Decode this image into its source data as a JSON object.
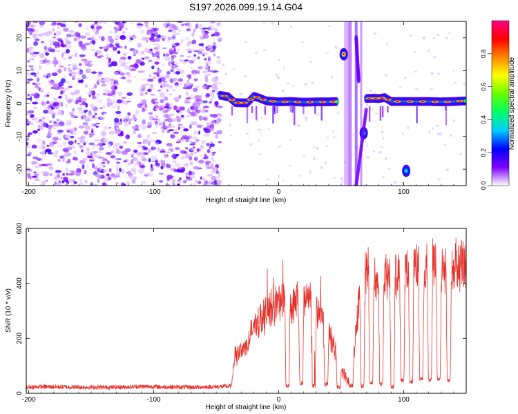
{
  "title": "S197.2026.099.19.14.G04",
  "chart_data": [
    {
      "type": "heatmap",
      "xlabel": "Height of straight line (km)",
      "ylabel": "Frequency (Hz)",
      "xlim": [
        -202,
        150
      ],
      "ylim": [
        -25,
        25
      ],
      "xticks": [
        -200,
        -100,
        0,
        100
      ],
      "yticks": [
        -20,
        -10,
        0,
        10,
        20
      ],
      "noise_region_x": [
        -202,
        -47
      ],
      "ridge": [
        [
          -47,
          2.5
        ],
        [
          -40,
          2
        ],
        [
          -35,
          0.3
        ],
        [
          -30,
          0.2
        ],
        [
          -25,
          0.2
        ],
        [
          -20,
          2.2
        ],
        [
          -15,
          1.6
        ],
        [
          -10,
          0.8
        ],
        [
          0,
          0.5
        ],
        [
          10,
          0.6
        ],
        [
          20,
          0.4
        ],
        [
          30,
          0.5
        ],
        [
          40,
          0.5
        ],
        [
          47,
          0.6
        ]
      ],
      "ridge2": [
        [
          70,
          1.5
        ],
        [
          75,
          1.6
        ],
        [
          80,
          1.5
        ],
        [
          85,
          1.8
        ],
        [
          90,
          0.6
        ],
        [
          100,
          0.6
        ],
        [
          110,
          0.6
        ],
        [
          120,
          0.6
        ],
        [
          130,
          0.5
        ],
        [
          140,
          0.6
        ],
        [
          150,
          0.8
        ]
      ],
      "blobs": [
        {
          "x": 52,
          "y": 15,
          "amp": 0.9
        },
        {
          "x": 68,
          "y": -9,
          "amp": 0.5
        },
        {
          "x": 102,
          "y": -20.5,
          "amp": 0.4
        }
      ],
      "colorbar": {
        "label": "Normalized spectral amplitude",
        "range": [
          0,
          1
        ],
        "ticks": [
          "0.0",
          "0.2",
          "0.4",
          "0.6",
          "0.8"
        ],
        "colors": [
          "#ffffff",
          "#7f00ff",
          "#0000ff",
          "#00ccff",
          "#00ff66",
          "#66ff00",
          "#ffff00",
          "#ff8800",
          "#ff0000",
          "#ff0088"
        ]
      }
    },
    {
      "type": "line",
      "xlabel": "Height of straight line (km)",
      "ylabel": "SNR (10 * v/v)",
      "xlim": [
        -202,
        150
      ],
      "ylim": [
        0,
        600
      ],
      "xticks": [
        -200,
        -100,
        0,
        100
      ],
      "yticks": [
        0,
        200,
        400,
        600
      ],
      "color": "#e8302a",
      "envelope": [
        [
          -202,
          22
        ],
        [
          -190,
          24
        ],
        [
          -170,
          23
        ],
        [
          -150,
          22
        ],
        [
          -130,
          22
        ],
        [
          -110,
          25
        ],
        [
          -90,
          23
        ],
        [
          -70,
          22
        ],
        [
          -50,
          24
        ],
        [
          -38,
          26
        ],
        [
          -35,
          140
        ],
        [
          -30,
          170
        ],
        [
          -25,
          190
        ],
        [
          -20,
          260
        ],
        [
          -15,
          290
        ],
        [
          -10,
          310
        ],
        [
          -5,
          340
        ],
        [
          0,
          360
        ],
        [
          5,
          380
        ],
        [
          10,
          330
        ],
        [
          15,
          370
        ],
        [
          20,
          390
        ],
        [
          25,
          360
        ],
        [
          30,
          340
        ],
        [
          35,
          300
        ],
        [
          40,
          250
        ],
        [
          45,
          170
        ],
        [
          50,
          90
        ],
        [
          55,
          60
        ],
        [
          58,
          40
        ],
        [
          62,
          250
        ],
        [
          65,
          400
        ],
        [
          68,
          470
        ],
        [
          72,
          500
        ],
        [
          75,
          440
        ],
        [
          80,
          430
        ],
        [
          85,
          450
        ],
        [
          90,
          470
        ],
        [
          95,
          460
        ],
        [
          100,
          480
        ],
        [
          105,
          500
        ],
        [
          110,
          505
        ],
        [
          115,
          480
        ],
        [
          120,
          500
        ],
        [
          125,
          510
        ],
        [
          130,
          490
        ],
        [
          135,
          500
        ],
        [
          140,
          495
        ],
        [
          145,
          505
        ],
        [
          150,
          500
        ]
      ],
      "dips": [
        {
          "x": 7,
          "depth": 20
        },
        {
          "x": 18,
          "depth": 30
        },
        {
          "x": 28,
          "depth": 20
        },
        {
          "x": 38,
          "depth": 25
        },
        {
          "x": 48,
          "depth": 15
        },
        {
          "x": 58,
          "depth": 20
        },
        {
          "x": 67,
          "depth": 20
        },
        {
          "x": 74,
          "depth": 30
        },
        {
          "x": 82,
          "depth": 25
        },
        {
          "x": 91,
          "depth": 15
        },
        {
          "x": 99,
          "depth": 40
        },
        {
          "x": 106,
          "depth": 35
        },
        {
          "x": 114,
          "depth": 45
        },
        {
          "x": 121,
          "depth": 40
        },
        {
          "x": 128,
          "depth": 45
        },
        {
          "x": 136,
          "depth": 40
        }
      ]
    }
  ]
}
